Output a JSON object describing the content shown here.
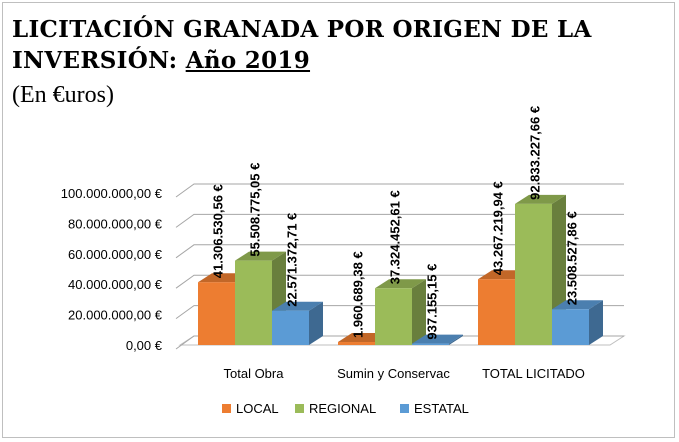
{
  "chart_data": {
    "type": "bar",
    "title_line1": "LICITACIÓN GRANADA POR ORIGEN DE LA",
    "title_line2_prefix": "INVERSIÓN: ",
    "title_line2_year": "Año 2019",
    "subtitle": "(En €uros)",
    "categories": [
      "Total Obra",
      "Sumin y Conservac",
      "TOTAL LICITADO"
    ],
    "series": [
      {
        "name": "LOCAL",
        "color": "#ED7D31",
        "values": [
          41306530.56,
          1960689.38,
          43267219.94
        ],
        "labels": [
          "41.306.530,56 €",
          "1.960.689,38 €",
          "43.267.219,94 €"
        ]
      },
      {
        "name": "REGIONAL",
        "color": "#9BBB59",
        "values": [
          55508775.05,
          37324452.61,
          92833227.66
        ],
        "labels": [
          "55.508.775,05 €",
          "37.324.452,61 €",
          "92.833.227,66 €"
        ]
      },
      {
        "name": "ESTATAL",
        "color": "#5B9BD5",
        "values": [
          22571372.71,
          937155.15,
          23508527.86
        ],
        "labels": [
          "22.571.372,71 €",
          "937.155,15 €",
          "23.508.527,86 €"
        ]
      }
    ],
    "y_ticks": [
      0,
      20000000,
      40000000,
      60000000,
      80000000,
      100000000
    ],
    "y_tick_labels": [
      "0,00 €",
      "20.000.000,00 €",
      "40.000.000,00 €",
      "60.000.000,00 €",
      "80.000.000,00 €",
      "100.000.000,00 €"
    ],
    "ylim": [
      0,
      100000000
    ],
    "grid": true,
    "legend_position": "bottom"
  }
}
